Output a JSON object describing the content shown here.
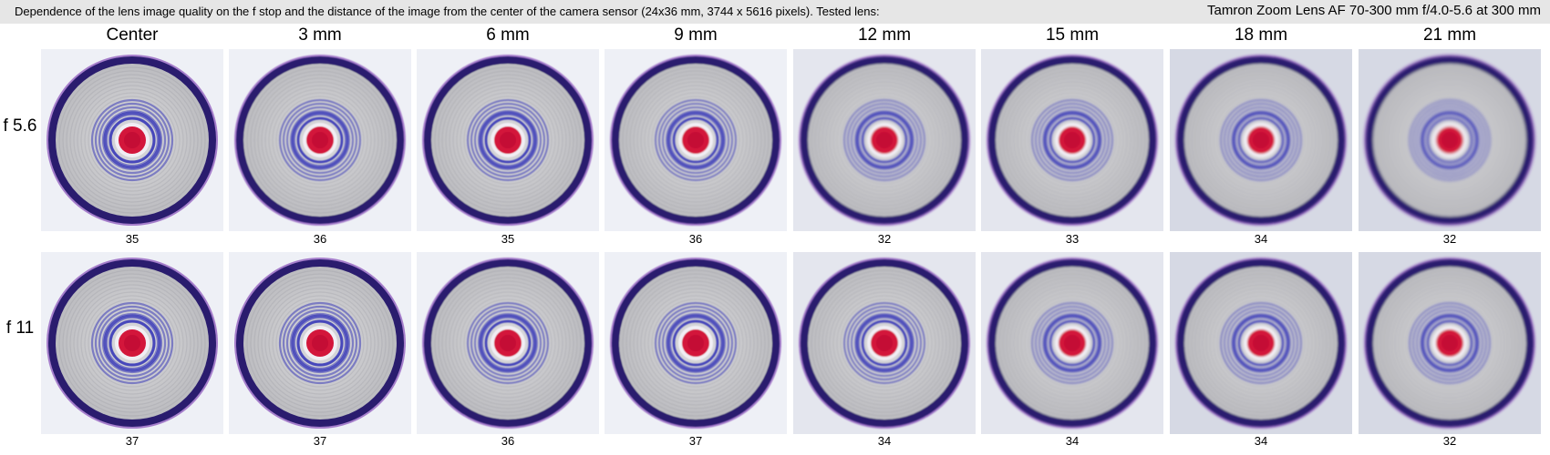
{
  "header": {
    "description": "Dependence of the lens image quality on the f stop and the distance of the image from the center of the camera sensor (24x36 mm, 3744 x 5616 pixels).  Tested lens:",
    "lens": "Tamron Zoom Lens AF 70-300 mm f/4.0-5.6 at 300 mm"
  },
  "columns": [
    "Center",
    "3 mm",
    "6 mm",
    "9 mm",
    "12 mm",
    "15 mm",
    "18 mm",
    "21 mm"
  ],
  "rows": [
    {
      "label": "f 5.6",
      "scores": [
        "35",
        "36",
        "35",
        "36",
        "32",
        "33",
        "34",
        "32"
      ]
    },
    {
      "label": "f 11",
      "scores": [
        "37",
        "37",
        "36",
        "37",
        "34",
        "34",
        "34",
        "32"
      ]
    }
  ],
  "colors": {
    "ring_outer": "#2a1f6e",
    "ring_fringe": "#6a1fa8",
    "target_gray": "#b9b7b8",
    "stripe_blue": "#3d3db8",
    "center_red": "#d3143a"
  }
}
